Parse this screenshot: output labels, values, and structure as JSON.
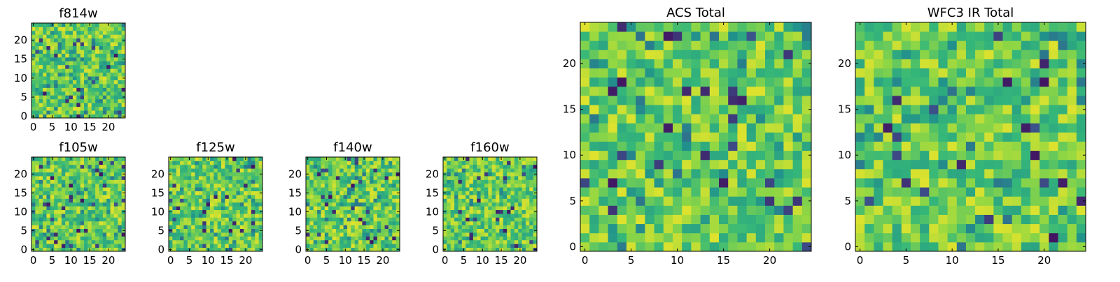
{
  "chart_data": [
    {
      "type": "heatmap",
      "title": "f814w",
      "x_ticks": [
        0,
        5,
        10,
        15,
        20
      ],
      "y_ticks": [
        0,
        5,
        10,
        15,
        20
      ],
      "xlim": [
        -0.5,
        24.5
      ],
      "ylim": [
        -0.5,
        24.5
      ],
      "grid_size": 25,
      "colormap": "viridis"
    },
    {
      "type": "heatmap",
      "title": "f105w",
      "x_ticks": [
        0,
        5,
        10,
        15,
        20
      ],
      "y_ticks": [
        0,
        5,
        10,
        15,
        20
      ],
      "xlim": [
        -0.5,
        24.5
      ],
      "ylim": [
        -0.5,
        24.5
      ],
      "grid_size": 25,
      "colormap": "viridis"
    },
    {
      "type": "heatmap",
      "title": "f125w",
      "x_ticks": [
        0,
        5,
        10,
        15,
        20
      ],
      "y_ticks": [
        0,
        5,
        10,
        15,
        20
      ],
      "xlim": [
        -0.5,
        24.5
      ],
      "ylim": [
        -0.5,
        24.5
      ],
      "grid_size": 25,
      "colormap": "viridis"
    },
    {
      "type": "heatmap",
      "title": "f140w",
      "x_ticks": [
        0,
        5,
        10,
        15,
        20
      ],
      "y_ticks": [
        0,
        5,
        10,
        15,
        20
      ],
      "xlim": [
        -0.5,
        24.5
      ],
      "ylim": [
        -0.5,
        24.5
      ],
      "grid_size": 25,
      "colormap": "viridis"
    },
    {
      "type": "heatmap",
      "title": "f160w",
      "x_ticks": [
        0,
        5,
        10,
        15,
        20
      ],
      "y_ticks": [
        0,
        5,
        10,
        15,
        20
      ],
      "xlim": [
        -0.5,
        24.5
      ],
      "ylim": [
        -0.5,
        24.5
      ],
      "grid_size": 25,
      "colormap": "viridis"
    },
    {
      "type": "heatmap",
      "title": "ACS Total",
      "x_ticks": [
        0,
        5,
        10,
        15,
        20
      ],
      "y_ticks": [
        0,
        5,
        10,
        15,
        20
      ],
      "xlim": [
        -0.5,
        24.5
      ],
      "ylim": [
        -0.5,
        24.5
      ],
      "grid_size": 25,
      "colormap": "viridis"
    },
    {
      "type": "heatmap",
      "title": "WFC3 IR Total",
      "x_ticks": [
        0,
        5,
        10,
        15,
        20
      ],
      "y_ticks": [
        0,
        5,
        10,
        15,
        20
      ],
      "xlim": [
        -0.5,
        24.5
      ],
      "ylim": [
        -0.5,
        24.5
      ],
      "grid_size": 25,
      "colormap": "viridis"
    }
  ]
}
